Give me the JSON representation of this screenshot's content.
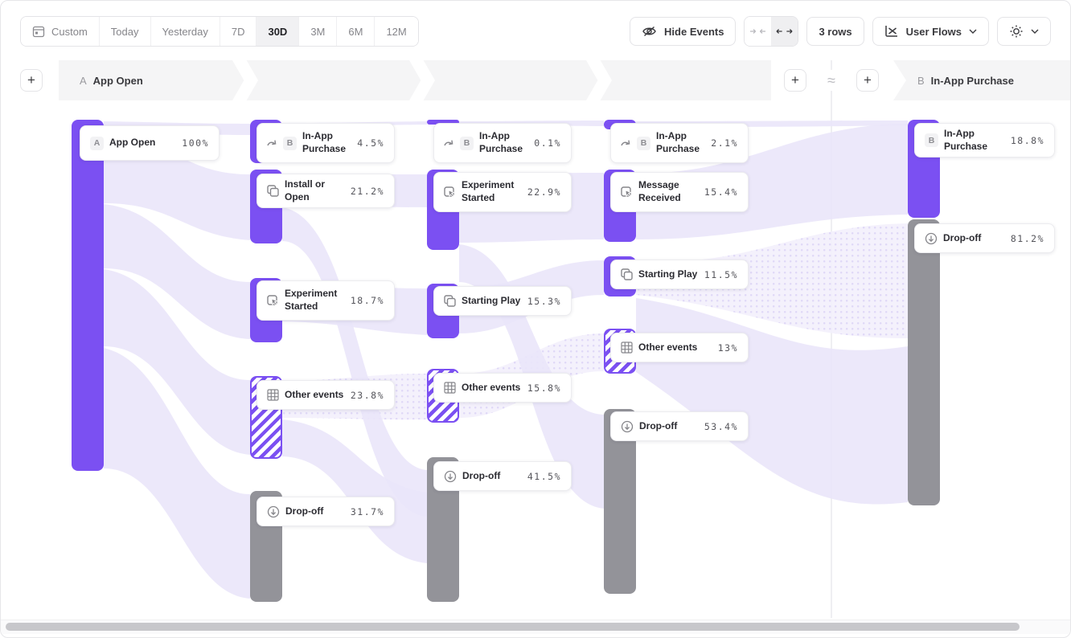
{
  "toolbar": {
    "date_ranges": [
      "Custom",
      "Today",
      "Yesterday",
      "7D",
      "30D",
      "3M",
      "6M",
      "12M"
    ],
    "selected_range": "30D",
    "hide_events": "Hide Events",
    "rows": "3 rows",
    "view": "User Flows"
  },
  "header": {
    "start_badge": "A",
    "start_label": "App Open",
    "end_badge": "B",
    "end_label": "In-App Purchase",
    "add": "+",
    "approx": "≈"
  },
  "colors": {
    "purple": "#7B50F2",
    "gray": "#939399",
    "ribbon": "#EAE6FA"
  },
  "chart_data": {
    "type": "sankey",
    "unit": "percent of users",
    "start_event": "App Open",
    "end_event": "In-App Purchase",
    "columns": [
      {
        "name": "start",
        "nodes": [
          {
            "label": "App Open",
            "value": "100%",
            "value_num": 100,
            "badge": "A",
            "icon": "",
            "kind": "solid",
            "bar": [
              88,
              148,
              40,
              437
            ],
            "card": [
              98,
              155,
              174,
              44
            ]
          }
        ]
      },
      {
        "name": "step-2",
        "nodes": [
          {
            "label": "In-App Purchase",
            "value": "4.5%",
            "value_num": 4.5,
            "badge": "B",
            "icon": "skip-arrow",
            "kind": "solid",
            "bar": [
              310,
              148,
              40,
              54
            ],
            "card": [
              318,
              152,
              172,
              50
            ]
          },
          {
            "label": "Install or Open",
            "value": "21.2%",
            "value_num": 21.2,
            "icon": "overlap-squares",
            "kind": "solid",
            "bar": [
              310,
              210,
              40,
              92
            ],
            "card": [
              318,
              215,
              172,
              37
            ]
          },
          {
            "label": "Experiment Started",
            "value": "18.7%",
            "value_num": 18.7,
            "icon": "cursor-box",
            "kind": "solid",
            "bar": [
              310,
              345,
              40,
              80
            ],
            "card": [
              318,
              348,
              172,
              50
            ]
          },
          {
            "label": "Other events",
            "value": "23.8%",
            "value_num": 23.8,
            "icon": "grid",
            "kind": "hatched",
            "bar": [
              310,
              467,
              40,
              103
            ],
            "card": [
              318,
              472,
              172,
              37
            ]
          },
          {
            "label": "Drop-off",
            "value": "31.7%",
            "value_num": 31.7,
            "icon": "drop-off",
            "kind": "gray",
            "bar": [
              310,
              610,
              40,
              138
            ],
            "card": [
              318,
              617,
              172,
              37
            ]
          }
        ]
      },
      {
        "name": "step-3",
        "nodes": [
          {
            "label": "In-App Purchase",
            "value": "0.1%",
            "value_num": 0.1,
            "badge": "B",
            "icon": "skip-arrow",
            "kind": "solid",
            "bar": [
              530,
              148,
              40,
              6
            ],
            "card": [
              538,
              152,
              172,
              50
            ]
          },
          {
            "label": "Experiment Started",
            "value": "22.9%",
            "value_num": 22.9,
            "icon": "cursor-box",
            "kind": "solid",
            "bar": [
              530,
              210,
              40,
              100
            ],
            "card": [
              538,
              213,
              172,
              50
            ]
          },
          {
            "label": "Starting Play",
            "value": "15.3%",
            "value_num": 15.3,
            "icon": "overlap-squares",
            "kind": "solid",
            "bar": [
              530,
              352,
              40,
              68
            ],
            "card": [
              538,
              355,
              172,
              37
            ]
          },
          {
            "label": "Other events",
            "value": "15.8%",
            "value_num": 15.8,
            "icon": "grid",
            "kind": "hatched",
            "bar": [
              530,
              458,
              40,
              67
            ],
            "card": [
              538,
              463,
              172,
              37
            ]
          },
          {
            "label": "Drop-off",
            "value": "41.5%",
            "value_num": 41.5,
            "icon": "drop-off",
            "kind": "gray",
            "bar": [
              530,
              568,
              40,
              180
            ],
            "card": [
              538,
              573,
              172,
              37
            ]
          }
        ]
      },
      {
        "name": "step-4",
        "nodes": [
          {
            "label": "In-App Purchase",
            "value": "2.1%",
            "value_num": 2.1,
            "badge": "B",
            "icon": "skip-arrow",
            "kind": "solid",
            "bar": [
              750,
              148,
              40,
              12
            ],
            "card": [
              758,
              152,
              172,
              50
            ]
          },
          {
            "label": "Message Received",
            "value": "15.4%",
            "value_num": 15.4,
            "icon": "cursor-box",
            "kind": "solid",
            "bar": [
              750,
              210,
              40,
              90
            ],
            "card": [
              758,
              213,
              172,
              50
            ]
          },
          {
            "label": "Starting Play",
            "value": "11.5%",
            "value_num": 11.5,
            "icon": "overlap-squares",
            "kind": "solid",
            "bar": [
              750,
              318,
              40,
              50
            ],
            "card": [
              758,
              322,
              172,
              37
            ]
          },
          {
            "label": "Other events",
            "value": "13%",
            "value_num": 13,
            "icon": "grid",
            "kind": "hatched",
            "bar": [
              750,
              408,
              40,
              56
            ],
            "card": [
              758,
              413,
              172,
              37
            ]
          },
          {
            "label": "Drop-off",
            "value": "53.4%",
            "value_num": 53.4,
            "icon": "drop-off",
            "kind": "gray",
            "bar": [
              750,
              508,
              40,
              230
            ],
            "card": [
              758,
              511,
              172,
              37
            ]
          }
        ]
      },
      {
        "name": "end",
        "nodes": [
          {
            "label": "In-App Purchase",
            "value": "18.8%",
            "value_num": 18.8,
            "badge": "B",
            "icon": "",
            "kind": "solid",
            "bar": [
              1128,
              148,
              40,
              122
            ],
            "card": [
              1136,
              152,
              175,
              37
            ]
          },
          {
            "label": "Drop-off",
            "value": "81.2%",
            "value_num": 81.2,
            "icon": "drop-off",
            "kind": "gray",
            "bar": [
              1128,
              272,
              40,
              356
            ],
            "card": [
              1136,
              277,
              175,
              37
            ]
          }
        ]
      }
    ]
  }
}
